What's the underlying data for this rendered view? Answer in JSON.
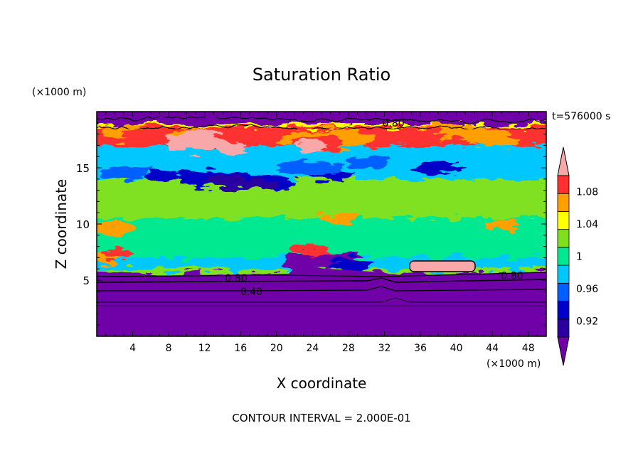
{
  "chart_data": {
    "type": "heatmap",
    "title": "Saturation Ratio",
    "xlabel": "X coordinate",
    "ylabel": "Z coordinate",
    "x_unit": "(×1000 m)",
    "y_unit": "(×1000 m)",
    "time_label": "t=576000 s",
    "footer": "CONTOUR INTERVAL = 2.000E-01",
    "xlim": [
      0,
      50
    ],
    "ylim": [
      0,
      20
    ],
    "x_ticks": [
      4,
      8,
      12,
      16,
      20,
      24,
      28,
      32,
      36,
      40,
      44,
      48
    ],
    "y_ticks": [
      5,
      10,
      15
    ],
    "contour_labels": [
      {
        "text": "0.80",
        "x": 33,
        "z": 19.0
      },
      {
        "text": "0.80",
        "x": 15.5,
        "z": 5.2
      },
      {
        "text": "0.40",
        "x": 17.2,
        "z": 4.0
      },
      {
        "text": "0.80",
        "x": 46.2,
        "z": 5.4
      }
    ],
    "colorbar": {
      "tick_labels": [
        "0.92",
        "0.96",
        "1",
        "1.04",
        "1.08"
      ],
      "tick_values": [
        0.92,
        0.96,
        1.0,
        1.04,
        1.08
      ],
      "levels": [
        0.9,
        0.92,
        0.94,
        0.96,
        0.98,
        1.0,
        1.02,
        1.04,
        1.06,
        1.08,
        1.1
      ],
      "colors": [
        "#7000a8",
        "#2a00a0",
        "#0000c8",
        "#0060ff",
        "#00c8ff",
        "#00e890",
        "#80e020",
        "#ffff00",
        "#ffa000",
        "#ff3030",
        "#f8a8a8"
      ]
    }
  }
}
